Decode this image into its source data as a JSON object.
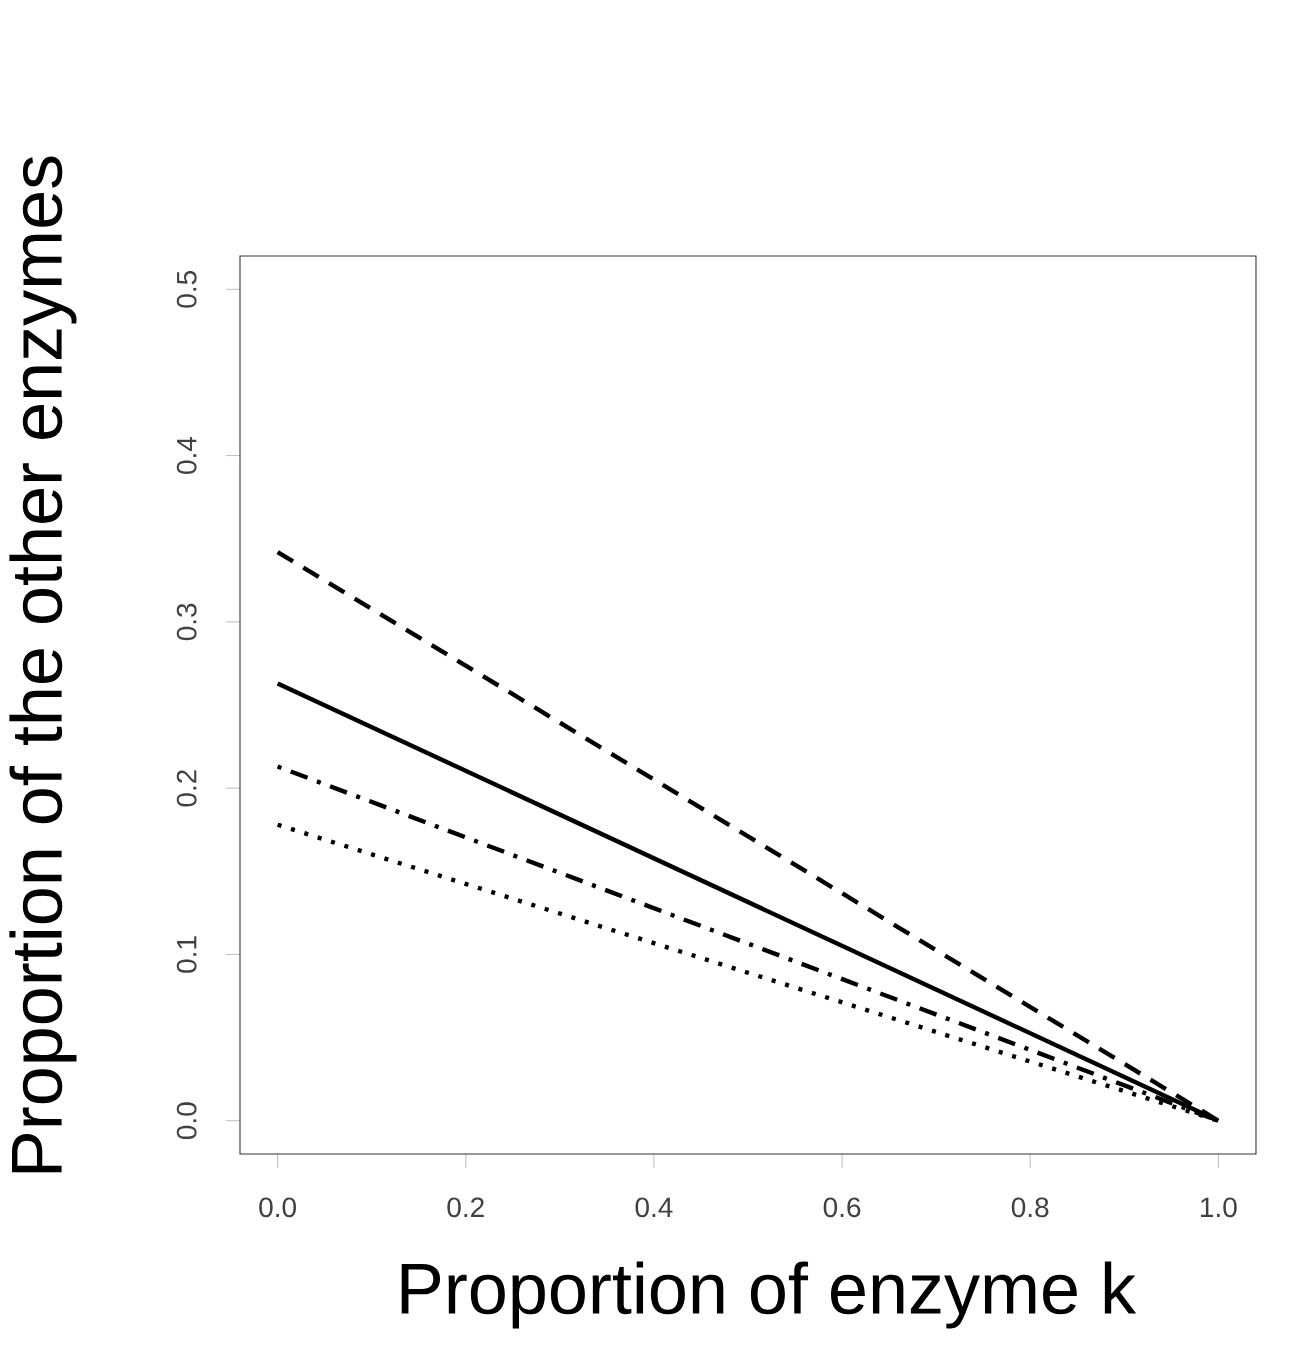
{
  "chart_data": {
    "type": "line",
    "xlabel": "Proportion of enzyme k",
    "ylabel": "Proportion of the other enzymes",
    "x": [
      0,
      1
    ],
    "series": [
      {
        "color": "#000000",
        "line_style": "dashed",
        "values": [
          0.342,
          0
        ]
      },
      {
        "color": "#000000",
        "line_style": "solid",
        "values": [
          0.263,
          0
        ]
      },
      {
        "color": "#000000",
        "line_style": "dashdot",
        "values": [
          0.213,
          0
        ]
      },
      {
        "color": "#000000",
        "line_style": "dotted",
        "values": [
          0.178,
          0
        ]
      }
    ],
    "xlim": [
      -0.04,
      1.04
    ],
    "ylim": [
      -0.02,
      0.52
    ],
    "xticks": [
      {
        "value": 0,
        "label": "0.0"
      },
      {
        "value": 0.2,
        "label": "0.2"
      },
      {
        "value": 0.4,
        "label": "0.4"
      },
      {
        "value": 0.6,
        "label": "0.6"
      },
      {
        "value": 0.8,
        "label": "0.8"
      },
      {
        "value": 1,
        "label": "1.0"
      }
    ],
    "yticks": [
      {
        "value": 0,
        "label": "0.0"
      },
      {
        "value": 0.1,
        "label": "0.1"
      },
      {
        "value": 0.2,
        "label": "0.2"
      },
      {
        "value": 0.3,
        "label": "0.3"
      },
      {
        "value": 0.4,
        "label": "0.4"
      },
      {
        "value": 0.5,
        "label": "0.5"
      }
    ],
    "grid": false
  }
}
